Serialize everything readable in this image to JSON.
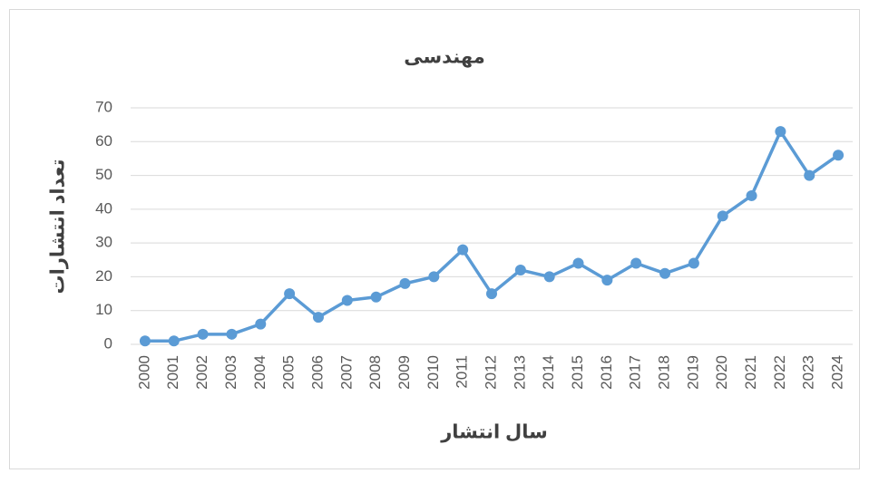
{
  "chart_data": {
    "type": "line",
    "title": "مهندسی",
    "x_label": "سال انتشار",
    "y_label": "تعداد انتشارات",
    "categories": [
      "2000",
      "2001",
      "2002",
      "2003",
      "2004",
      "2005",
      "2006",
      "2007",
      "2008",
      "2009",
      "2010",
      "2011",
      "2012",
      "2013",
      "2014",
      "2015",
      "2016",
      "2017",
      "2018",
      "2019",
      "2020",
      "2021",
      "2022",
      "2023",
      "2024"
    ],
    "values": [
      1,
      1,
      3,
      3,
      6,
      15,
      8,
      13,
      14,
      18,
      20,
      28,
      15,
      22,
      20,
      24,
      19,
      24,
      21,
      24,
      38,
      44,
      63,
      50,
      56
    ],
    "color": "#5b9bd5",
    "ylim": [
      0,
      70
    ],
    "yticks": [
      0,
      10,
      20,
      30,
      40,
      50,
      60,
      70
    ],
    "grid": true
  }
}
